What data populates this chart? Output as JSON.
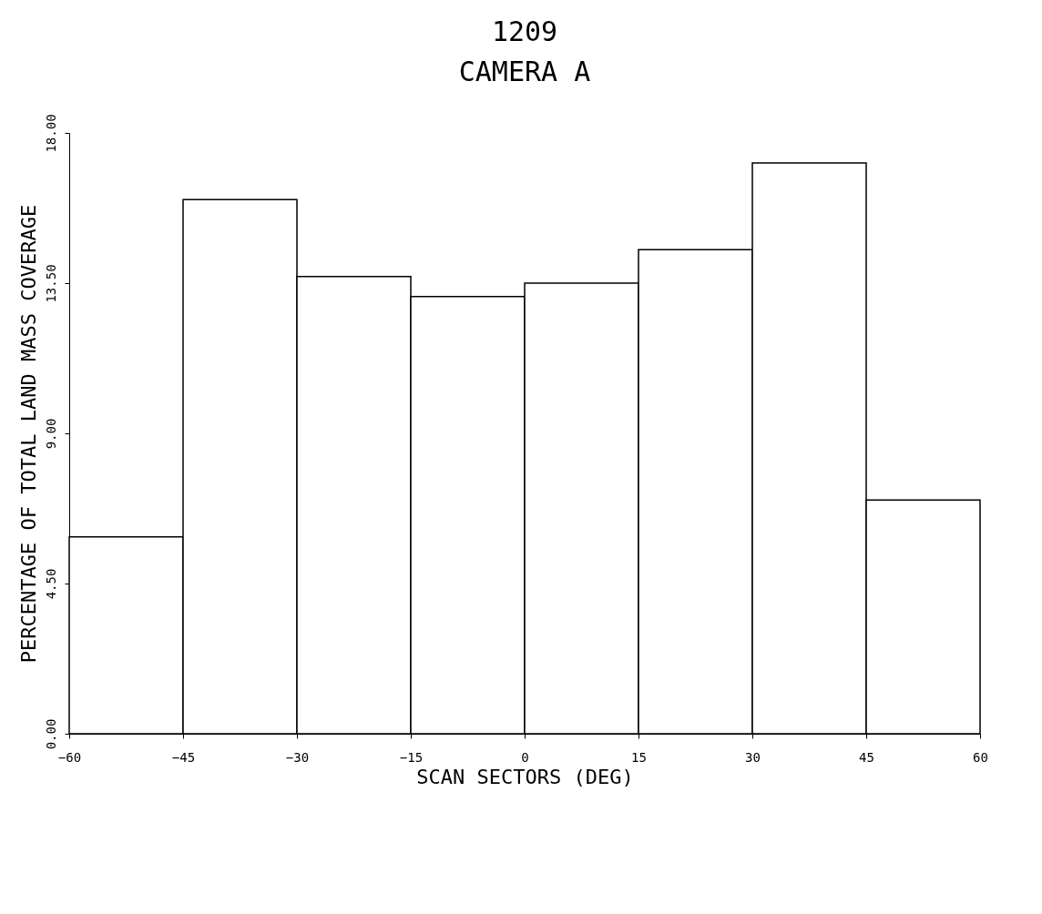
{
  "chart_data": {
    "type": "histogram",
    "title": "1209",
    "subtitle": "CAMERA A",
    "xlabel": "SCAN SECTORS (DEG)",
    "ylabel": "PERCENTAGE OF TOTAL LAND MASS COVERAGE",
    "bins": [
      -60,
      -45,
      -30,
      -15,
      0,
      15,
      30,
      45,
      60
    ],
    "values": [
      5.9,
      16.0,
      13.7,
      13.1,
      13.5,
      14.5,
      17.1,
      7.0
    ],
    "color": "#ffffff",
    "xlim": [
      -60,
      60
    ],
    "xticks": [
      -60,
      -45,
      -30,
      -15,
      0,
      15,
      30,
      45,
      60
    ],
    "ylim": [
      0,
      18
    ],
    "yticks": [
      {
        "value": 0,
        "label": "0.00"
      },
      {
        "value": 4.5,
        "label": "4.50"
      },
      {
        "value": 9,
        "label": "9.00"
      },
      {
        "value": 13.5,
        "label": "13.50"
      },
      {
        "value": 18,
        "label": "18.00"
      }
    ],
    "grid": false
  }
}
